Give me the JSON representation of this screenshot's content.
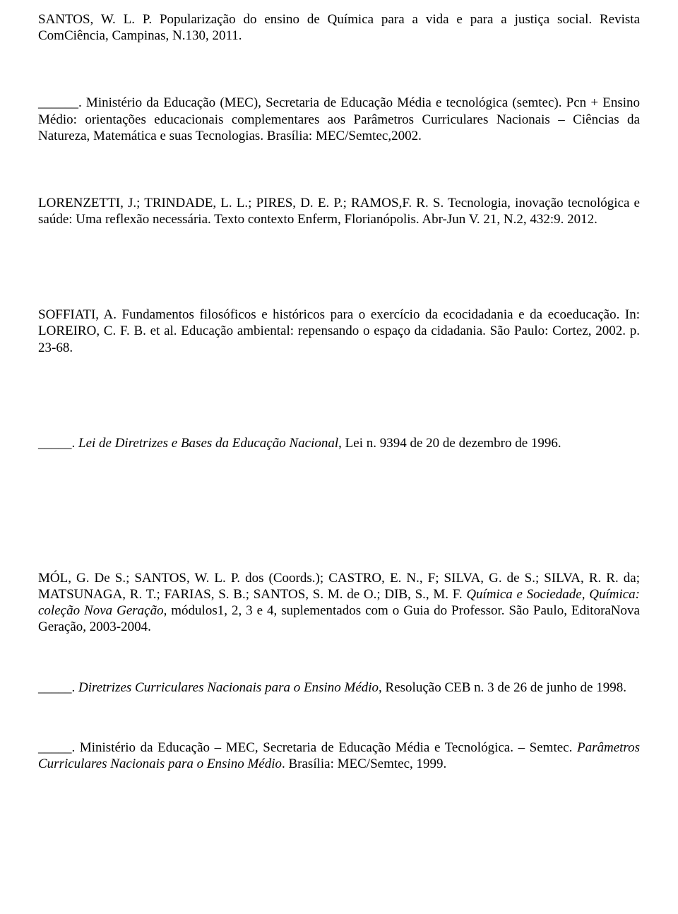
{
  "page": {
    "background_color": "#ffffff",
    "text_color": "#000000",
    "font_family": "Times New Roman",
    "base_fontsize_pt": 14
  },
  "references": {
    "ref1": {
      "text": "SANTOS, W. L. P. Popularização do ensino de Química para a vida e para a justiça social. Revista ComCiência, Campinas, N.130, 2011."
    },
    "ref2": {
      "blank_line": "______. ",
      "text_a": "Ministério da Educação (MEC), Secretaria de Educação Média e tecnológica (semtec). ",
      "text_b": "Pcn + Ensino Médio: orientações educacionais complementares aos Parâmetros Curriculares Nacionais – Ciências da Natureza, Matemática e suas Tecnologias. Brasília: MEC/Semtec,2002."
    },
    "ref3": {
      "text": "LORENZETTI, J.; TRINDADE, L. L.; PIRES, D. E. P.; RAMOS,F. R. S. Tecnologia, inovação tecnológica e saúde: Uma reflexão necessária. Texto contexto Enferm, Florianópolis. Abr-Jun V. 21, N.2, 432:9. 2012."
    },
    "ref4": {
      "text": "SOFFIATI, A. Fundamentos filosóficos e históricos para o exercício da ecocidadania e da ecoeducação. In: LOREIRO, C. F. B. et al. Educação ambiental: repensando o espaço da cidadania. São Paulo: Cortez, 2002. p. 23-68."
    },
    "ref5": {
      "blank_line": "_____. ",
      "italic_part": "Lei de Diretrizes e Bases da Educação Nacional",
      "rest": ", Lei n. 9394 de 20 de dezembro de 1996."
    },
    "ref6": {
      "text_a": "MÓL, G. De S.; SANTOS, W. L. P. dos (Coords.); CASTRO, E. N., F; SILVA, G. de S.; SILVA, R. R. da; MATSUNAGA, R. T.; FARIAS, S. B.; SANTOS, S. M. de O.; DIB, S., M. F. ",
      "italic_part": "Química e Sociedade, Química: coleção Nova Geração",
      "text_b": ", módulos1, 2, 3 e 4, suplementados com o Guia do Professor. São Paulo, EditoraNova Geração, 2003-2004."
    },
    "ref7": {
      "blank_line": "_____. ",
      "italic_part": "Diretrizes Curriculares Nacionais para o Ensino Médio",
      "rest": ", Resolução CEB n. 3 de 26 de junho de 1998."
    },
    "ref8": {
      "blank_line": "_____. ",
      "text_a": "Ministério da Educação – MEC, Secretaria de Educação Média e Tecnológica. – Semtec. ",
      "italic_part": "Parâmetros Curriculares Nacionais para o Ensino Médio",
      "rest": ". Brasília: MEC/Semtec, 1999."
    }
  }
}
